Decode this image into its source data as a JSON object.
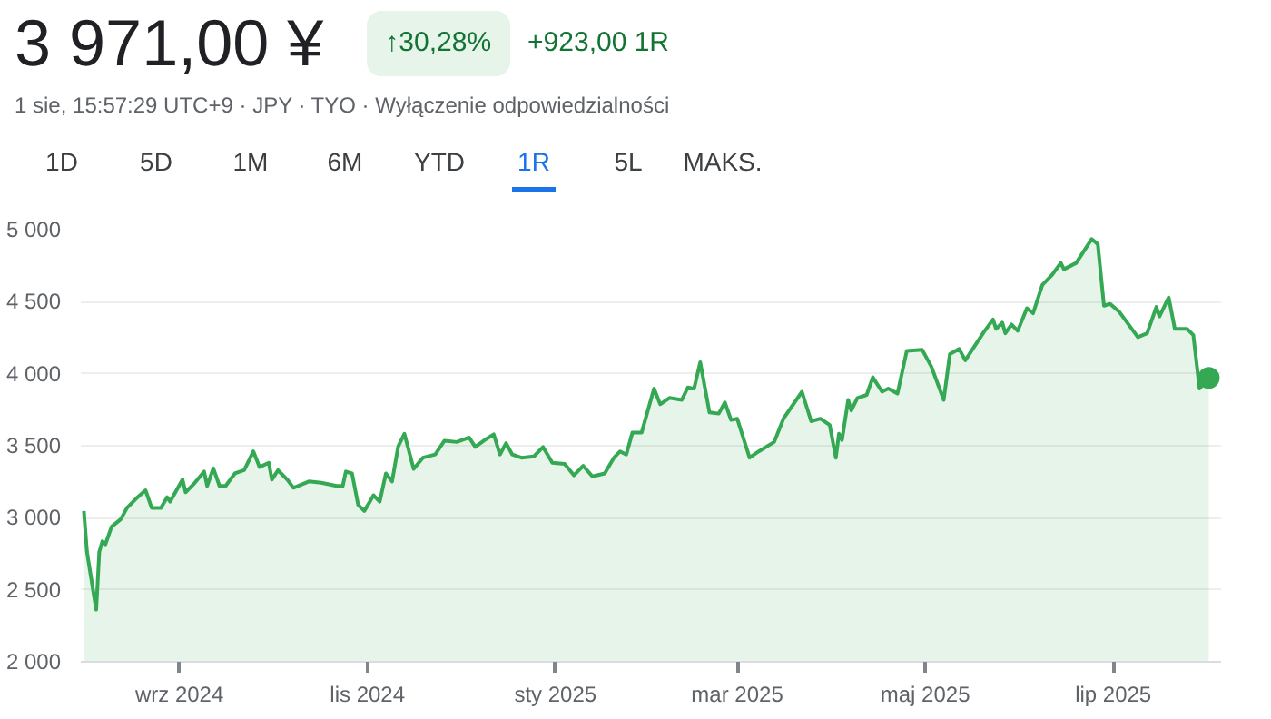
{
  "chart_data": {
    "type": "area",
    "title": "3 971,00 ¥",
    "subtitle": "1 sie, 15:57:29 UTC+9 · JPY · TYO · Wyłączenie odpowiedzialności",
    "annotations": [
      "↑30,28%",
      "+923,00 1R",
      "1D",
      "5D",
      "1M",
      "6M",
      "YTD",
      "1R",
      "5L",
      "MAKS."
    ],
    "x": [
      "2024-08-01",
      "2024-08-02",
      "2024-08-05",
      "2024-08-06",
      "2024-08-07",
      "2024-08-08",
      "2024-08-10",
      "2024-08-13",
      "2024-08-15",
      "2024-08-18",
      "2024-08-21",
      "2024-08-23",
      "2024-08-26",
      "2024-08-28",
      "2024-08-29",
      "2024-09-02",
      "2024-09-03",
      "2024-09-06",
      "2024-09-09",
      "2024-09-10",
      "2024-09-12",
      "2024-09-14",
      "2024-09-16",
      "2024-09-19",
      "2024-09-22",
      "2024-09-25",
      "2024-09-27",
      "2024-09-30",
      "2024-10-01",
      "2024-10-03",
      "2024-10-06",
      "2024-10-08",
      "2024-10-13",
      "2024-10-17",
      "2024-10-22",
      "2024-10-24",
      "2024-10-25",
      "2024-10-27",
      "2024-10-29",
      "2024-10-31",
      "2024-11-03",
      "2024-11-05",
      "2024-11-07",
      "2024-11-09",
      "2024-11-11",
      "2024-11-13",
      "2024-11-16",
      "2024-11-19",
      "2024-11-23",
      "2024-11-26",
      "2024-11-30",
      "2024-12-04",
      "2024-12-06",
      "2024-12-09",
      "2024-12-12",
      "2024-12-14",
      "2024-12-16",
      "2024-12-18",
      "2024-12-21",
      "2024-12-25",
      "2024-12-28",
      "2024-12-31",
      "2025-01-04",
      "2025-01-07",
      "2025-01-10",
      "2025-01-13",
      "2025-01-17",
      "2025-01-20",
      "2025-01-22",
      "2025-01-24",
      "2025-01-26",
      "2025-01-29",
      "2025-02-02",
      "2025-02-04",
      "2025-02-07",
      "2025-02-11",
      "2025-02-13",
      "2025-02-15",
      "2025-02-17",
      "2025-02-20",
      "2025-02-23",
      "2025-02-25",
      "2025-02-27",
      "2025-03-01",
      "2025-03-05",
      "2025-03-08",
      "2025-03-13",
      "2025-03-16",
      "2025-03-22",
      "2025-03-25",
      "2025-03-28",
      "2025-03-31",
      "2025-04-02",
      "2025-04-03",
      "2025-04-04",
      "2025-04-06",
      "2025-04-07",
      "2025-04-09",
      "2025-04-12",
      "2025-04-14",
      "2025-04-17",
      "2025-04-19",
      "2025-04-22",
      "2025-04-25",
      "2025-04-30",
      "2025-05-03",
      "2025-05-07",
      "2025-05-09",
      "2025-05-12",
      "2025-05-14",
      "2025-05-20",
      "2025-05-23",
      "2025-05-24",
      "2025-05-26",
      "2025-05-27",
      "2025-05-29",
      "2025-05-31",
      "2025-06-03",
      "2025-06-05",
      "2025-06-08",
      "2025-06-11",
      "2025-06-14",
      "2025-06-15",
      "2025-06-19",
      "2025-06-24",
      "2025-06-26",
      "2025-06-28",
      "2025-06-30",
      "2025-07-03",
      "2025-07-09",
      "2025-07-12",
      "2025-07-15",
      "2025-07-16",
      "2025-07-19",
      "2025-07-21",
      "2025-07-25",
      "2025-07-27",
      "2025-07-29",
      "2025-08-01"
    ],
    "series": [
      {
        "color": "#34a853",
        "values": [
          3047,
          2763,
          2362,
          2763,
          2837,
          2816,
          2938,
          2990,
          3069,
          3134,
          3191,
          3069,
          3069,
          3143,
          3112,
          3265,
          3177,
          3243,
          3321,
          3221,
          3343,
          3221,
          3221,
          3308,
          3330,
          3461,
          3352,
          3382,
          3265,
          3330,
          3265,
          3208,
          3252,
          3243,
          3221,
          3221,
          3321,
          3308,
          3090,
          3047,
          3156,
          3112,
          3308,
          3252,
          3496,
          3583,
          3339,
          3417,
          3439,
          3535,
          3526,
          3557,
          3491,
          3539,
          3579,
          3439,
          3518,
          3439,
          3417,
          3426,
          3491,
          3382,
          3374,
          3295,
          3361,
          3287,
          3308,
          3417,
          3461,
          3439,
          3592,
          3592,
          3897,
          3788,
          3832,
          3818,
          3905,
          3897,
          4080,
          3731,
          3723,
          3801,
          3679,
          3688,
          3417,
          3461,
          3526,
          3688,
          3875,
          3670,
          3688,
          3644,
          3417,
          3583,
          3539,
          3818,
          3745,
          3832,
          3853,
          3975,
          3875,
          3897,
          3862,
          4158,
          4167,
          4049,
          3818,
          4137,
          4172,
          4093,
          4289,
          4377,
          4311,
          4355,
          4281,
          4342,
          4298,
          4455,
          4420,
          4616,
          4682,
          4769,
          4725,
          4769,
          4935,
          4900,
          4472,
          4485,
          4429,
          4254,
          4281,
          4464,
          4398,
          4529,
          4311,
          4311,
          4268,
          3897,
          3971
        ]
      },
      {
        "type": "scatter",
        "marker": "circle",
        "color": "#34a853",
        "x": [
          "2025-08-01"
        ],
        "values": [
          3971
        ]
      }
    ],
    "xlim": [
      "2024-07-31",
      "2025-08-05"
    ],
    "xticks": [
      {
        "value": "2024-09-01",
        "label": "wrz 2024"
      },
      {
        "value": "2024-11-01",
        "label": "lis 2024"
      },
      {
        "value": "2025-01-01",
        "label": "sty 2025"
      },
      {
        "value": "2025-03-01",
        "label": "mar 2025"
      },
      {
        "value": "2025-05-01",
        "label": "maj 2025"
      },
      {
        "value": "2025-07-01",
        "label": "lip 2025"
      }
    ],
    "ylim": [
      2000,
      5000
    ],
    "yticks": [
      {
        "value": 2000,
        "label": "2 000"
      },
      {
        "value": 2500,
        "label": "2 500"
      },
      {
        "value": 3000,
        "label": "3 000"
      },
      {
        "value": 3500,
        "label": "3 500"
      },
      {
        "value": 4000,
        "label": "4 000"
      },
      {
        "value": 4500,
        "label": "4 500"
      },
      {
        "value": 5000,
        "label": "5 000"
      }
    ],
    "grid": "y",
    "marker": "none",
    "line_style": "solid"
  }
}
